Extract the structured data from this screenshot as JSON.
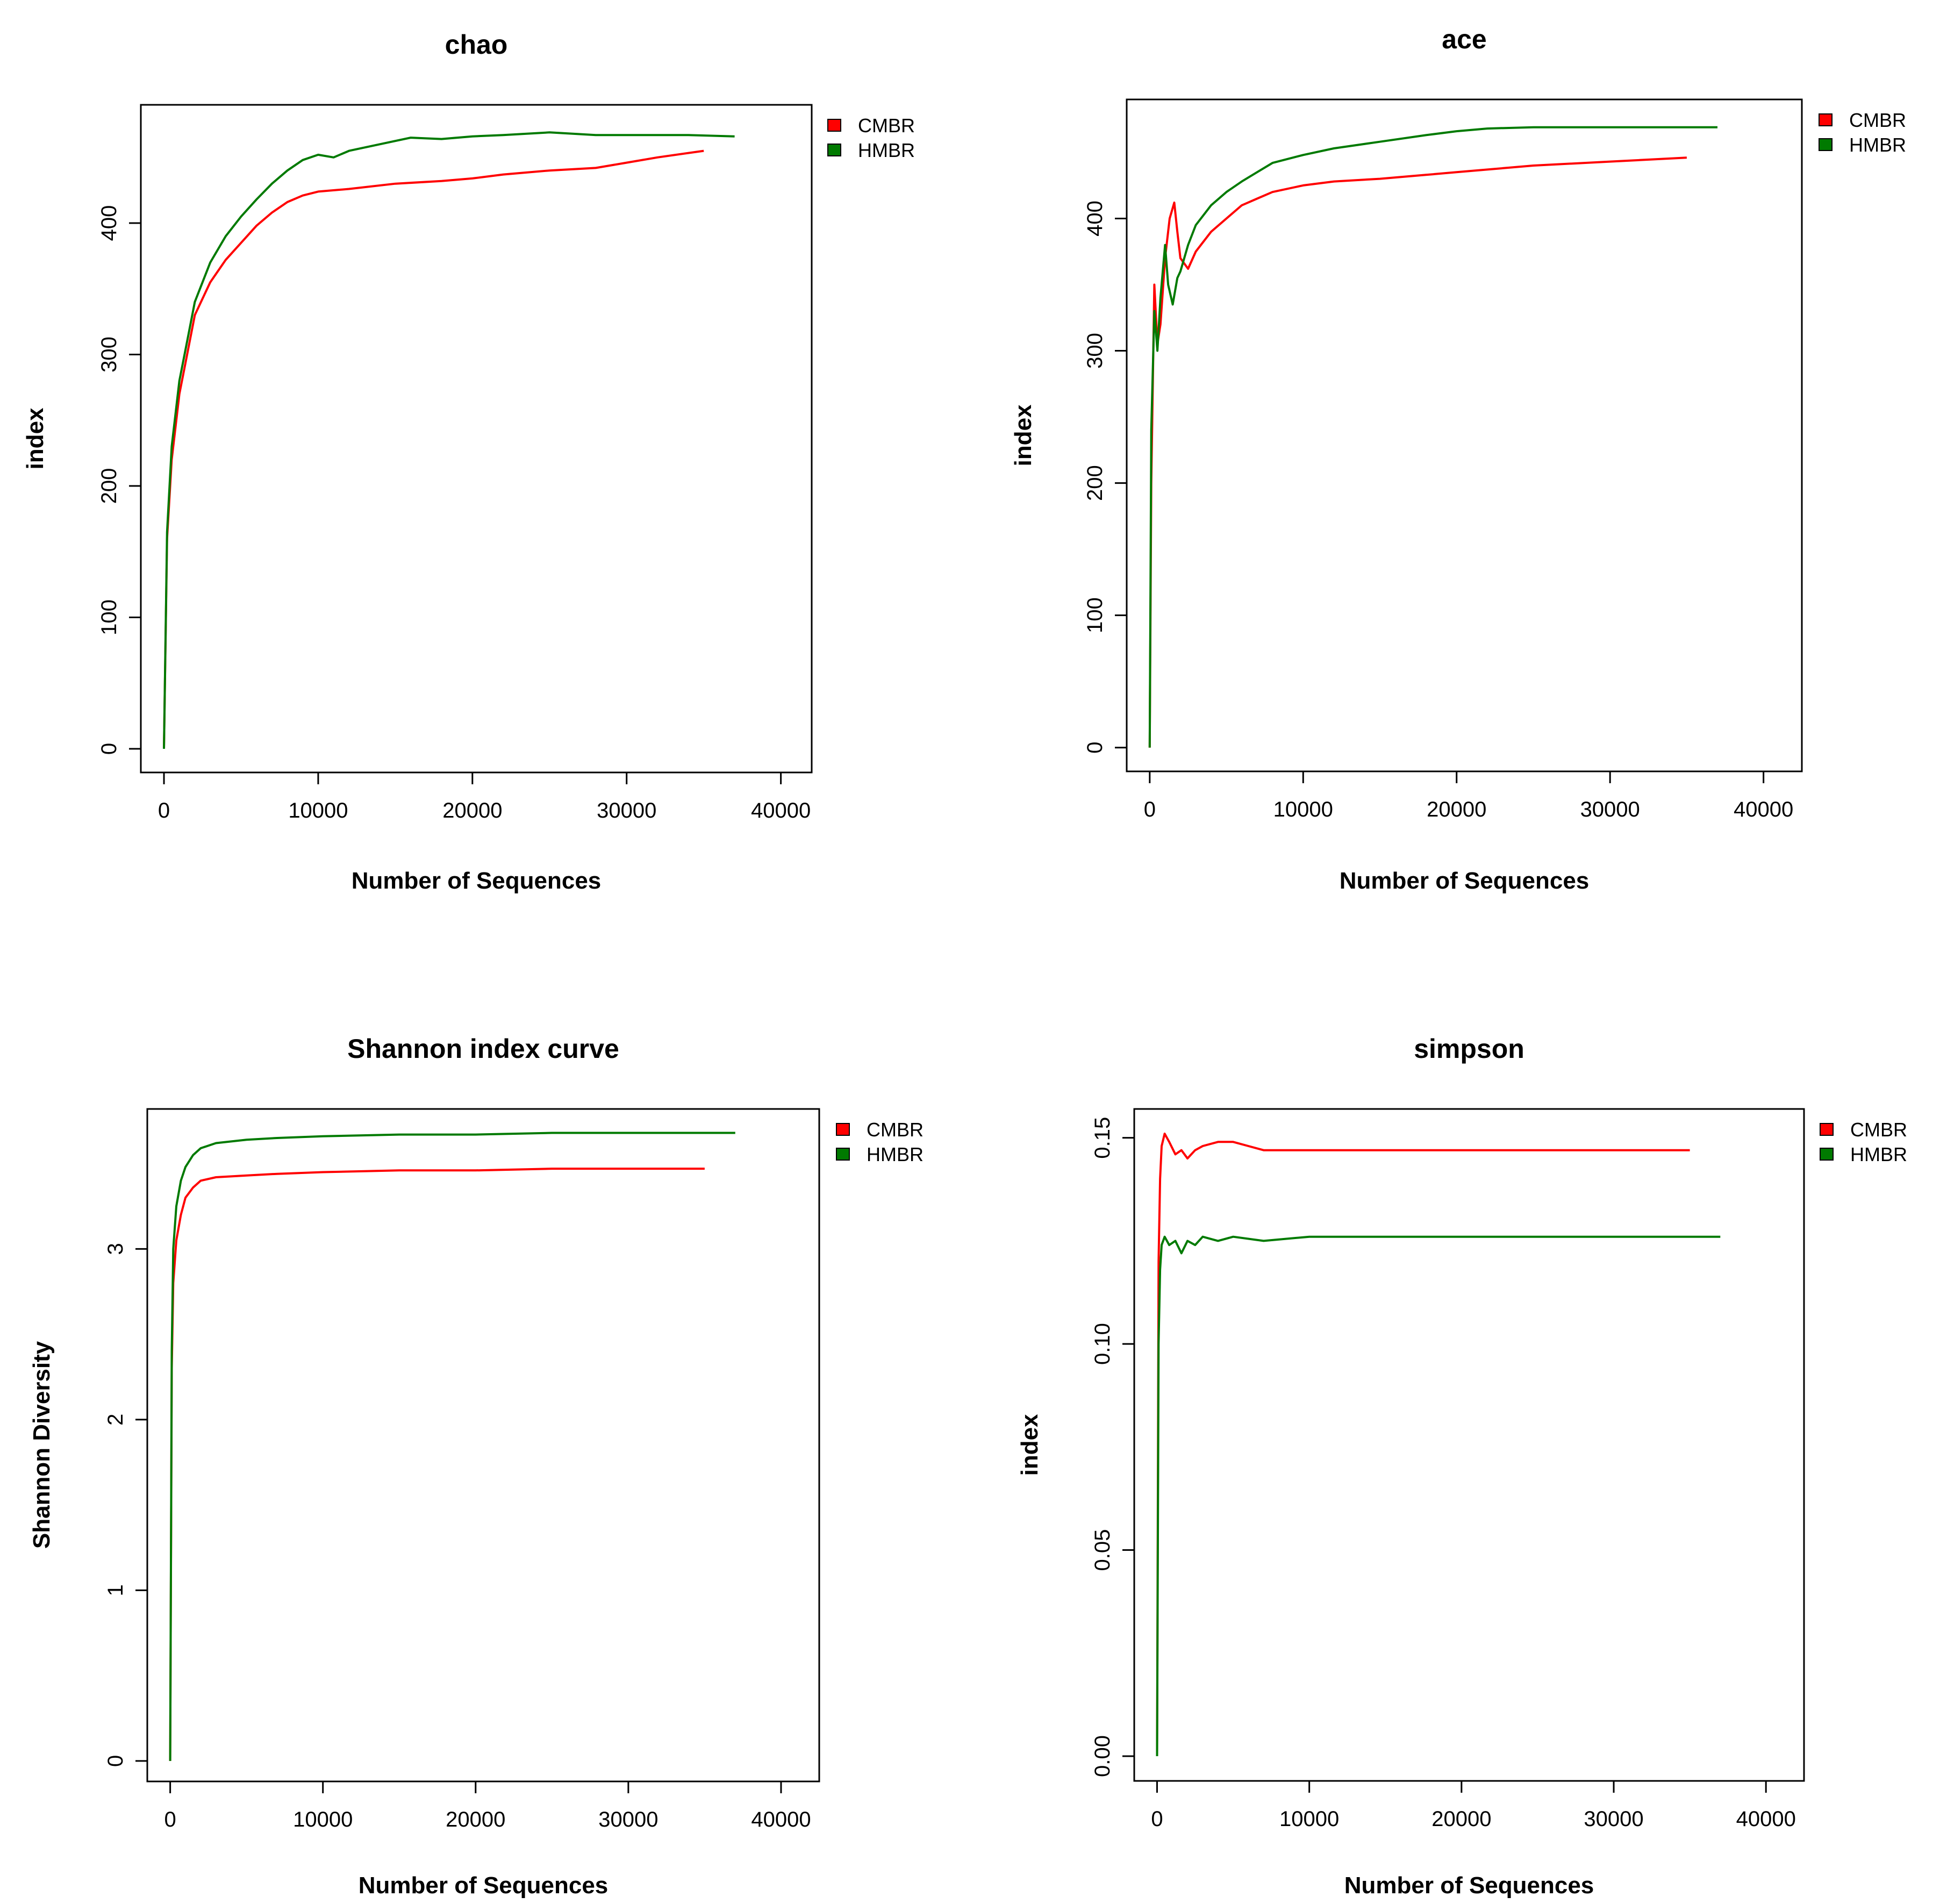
{
  "colors": {
    "cmbr": "#ff0000",
    "hmbr": "#007a00",
    "axis": "#000000"
  },
  "chart_data": [
    {
      "type": "line",
      "title": "chao",
      "xlabel": "Number of Sequences",
      "ylabel": "index",
      "xlim": [
        -1500,
        42000
      ],
      "ylim": [
        -18,
        490
      ],
      "xticks": [
        0,
        10000,
        20000,
        30000,
        40000
      ],
      "xtick_labels": [
        "0",
        "10000",
        "20000",
        "30000",
        "40000"
      ],
      "yticks": [
        0,
        100,
        200,
        300,
        400
      ],
      "ytick_labels": [
        "0",
        "100",
        "200",
        "300",
        "400"
      ],
      "legend": [
        "CMBR",
        "HMBR"
      ],
      "legend_position": "outside-top-right",
      "series": [
        {
          "name": "CMBR",
          "color": "#ff0000",
          "x": [
            0,
            200,
            500,
            1000,
            1500,
            2000,
            3000,
            4000,
            5000,
            6000,
            7000,
            8000,
            9000,
            10000,
            12000,
            15000,
            18000,
            20000,
            22000,
            25000,
            28000,
            30000,
            32000,
            35000
          ],
          "y": [
            0,
            160,
            220,
            270,
            300,
            330,
            355,
            372,
            385,
            398,
            408,
            416,
            421,
            424,
            426,
            430,
            432,
            434,
            437,
            440,
            442,
            446,
            450,
            455
          ]
        },
        {
          "name": "HMBR",
          "color": "#007a00",
          "x": [
            0,
            200,
            500,
            1000,
            1500,
            2000,
            3000,
            4000,
            5000,
            6000,
            7000,
            8000,
            9000,
            10000,
            11000,
            12000,
            14000,
            16000,
            18000,
            20000,
            22000,
            25000,
            28000,
            30000,
            34000,
            37000
          ],
          "y": [
            0,
            165,
            230,
            280,
            310,
            340,
            370,
            390,
            405,
            418,
            430,
            440,
            448,
            452,
            450,
            455,
            460,
            465,
            464,
            466,
            467,
            469,
            467,
            467,
            467,
            466
          ]
        }
      ]
    },
    {
      "type": "line",
      "title": "ace",
      "xlabel": "Number of Sequences",
      "ylabel": "index",
      "xlim": [
        -1500,
        42500
      ],
      "ylim": [
        -18,
        490
      ],
      "xticks": [
        0,
        10000,
        20000,
        30000,
        40000
      ],
      "xtick_labels": [
        "0",
        "10000",
        "20000",
        "30000",
        "40000"
      ],
      "yticks": [
        0,
        100,
        200,
        300,
        400
      ],
      "ytick_labels": [
        "0",
        "100",
        "200",
        "300",
        "400"
      ],
      "legend": [
        "CMBR",
        "HMBR"
      ],
      "legend_position": "outside-top-right",
      "series": [
        {
          "name": "CMBR",
          "color": "#ff0000",
          "x": [
            0,
            100,
            300,
            500,
            700,
            1000,
            1300,
            1600,
            1800,
            2000,
            2500,
            3000,
            4000,
            5000,
            6000,
            7000,
            8000,
            10000,
            12000,
            15000,
            18000,
            20000,
            25000,
            30000,
            35000
          ],
          "y": [
            0,
            200,
            350,
            305,
            320,
            370,
            400,
            412,
            390,
            370,
            362,
            375,
            390,
            400,
            410,
            415,
            420,
            425,
            428,
            430,
            433,
            435,
            440,
            443,
            446
          ]
        },
        {
          "name": "HMBR",
          "color": "#007a00",
          "x": [
            0,
            100,
            300,
            500,
            700,
            1000,
            1200,
            1500,
            1800,
            2000,
            2500,
            3000,
            4000,
            5000,
            6000,
            7000,
            8000,
            10000,
            12000,
            15000,
            18000,
            20000,
            22000,
            25000,
            30000,
            37000
          ],
          "y": [
            0,
            240,
            330,
            300,
            340,
            380,
            350,
            335,
            355,
            360,
            380,
            395,
            410,
            420,
            428,
            435,
            442,
            448,
            453,
            458,
            463,
            466,
            468,
            469,
            469,
            469
          ]
        }
      ]
    },
    {
      "type": "line",
      "title": "Shannon index curve",
      "xlabel": "Number of Sequences",
      "ylabel": "Shannon Diversity",
      "xlim": [
        -1500,
        42500
      ],
      "ylim": [
        -0.12,
        3.82
      ],
      "xticks": [
        0,
        10000,
        20000,
        30000,
        40000
      ],
      "xtick_labels": [
        "0",
        "10000",
        "20000",
        "30000",
        "40000"
      ],
      "yticks": [
        0,
        1,
        2,
        3
      ],
      "ytick_labels": [
        "0",
        "1",
        "2",
        "3"
      ],
      "legend": [
        "CMBR",
        "HMBR"
      ],
      "legend_position": "outside-top-right",
      "series": [
        {
          "name": "CMBR",
          "color": "#ff0000",
          "x": [
            0,
            100,
            200,
            400,
            700,
            1000,
            1500,
            2000,
            3000,
            5000,
            7000,
            10000,
            15000,
            20000,
            25000,
            30000,
            35000
          ],
          "y": [
            0,
            2.3,
            2.8,
            3.05,
            3.2,
            3.3,
            3.36,
            3.4,
            3.42,
            3.43,
            3.44,
            3.45,
            3.46,
            3.46,
            3.47,
            3.47,
            3.47
          ]
        },
        {
          "name": "HMBR",
          "color": "#007a00",
          "x": [
            0,
            100,
            200,
            400,
            700,
            1000,
            1500,
            2000,
            3000,
            5000,
            7000,
            10000,
            15000,
            20000,
            25000,
            30000,
            37000
          ],
          "y": [
            0,
            2.4,
            3.0,
            3.25,
            3.4,
            3.48,
            3.55,
            3.59,
            3.62,
            3.64,
            3.65,
            3.66,
            3.67,
            3.67,
            3.68,
            3.68,
            3.68
          ]
        }
      ]
    },
    {
      "type": "line",
      "title": "simpson",
      "xlabel": "Number of Sequences",
      "ylabel": "index",
      "xlim": [
        -1500,
        42500
      ],
      "ylim": [
        -0.006,
        0.157
      ],
      "xticks": [
        0,
        10000,
        20000,
        30000,
        40000
      ],
      "xtick_labels": [
        "0",
        "10000",
        "20000",
        "30000",
        "40000"
      ],
      "yticks": [
        0.0,
        0.05,
        0.1,
        0.15
      ],
      "ytick_labels": [
        "0.00",
        "0.05",
        "0.10",
        "0.15"
      ],
      "legend": [
        "CMBR",
        "HMBR"
      ],
      "legend_position": "outside-top-right",
      "series": [
        {
          "name": "CMBR",
          "color": "#ff0000",
          "x": [
            0,
            100,
            200,
            300,
            500,
            800,
            1200,
            1600,
            2000,
            2500,
            3000,
            4000,
            5000,
            6000,
            7000,
            8000,
            10000,
            15000,
            20000,
            25000,
            30000,
            35000
          ],
          "y": [
            0,
            0.12,
            0.14,
            0.148,
            0.151,
            0.149,
            0.146,
            0.147,
            0.145,
            0.147,
            0.148,
            0.149,
            0.149,
            0.148,
            0.147,
            0.147,
            0.147,
            0.147,
            0.147,
            0.147,
            0.147,
            0.147
          ]
        },
        {
          "name": "HMBR",
          "color": "#007a00",
          "x": [
            0,
            100,
            200,
            300,
            500,
            800,
            1200,
            1600,
            2000,
            2500,
            3000,
            4000,
            5000,
            7000,
            10000,
            15000,
            20000,
            25000,
            30000,
            37000
          ],
          "y": [
            0,
            0.1,
            0.118,
            0.124,
            0.126,
            0.124,
            0.125,
            0.122,
            0.125,
            0.124,
            0.126,
            0.125,
            0.126,
            0.125,
            0.126,
            0.126,
            0.126,
            0.126,
            0.126,
            0.126
          ]
        }
      ]
    }
  ]
}
